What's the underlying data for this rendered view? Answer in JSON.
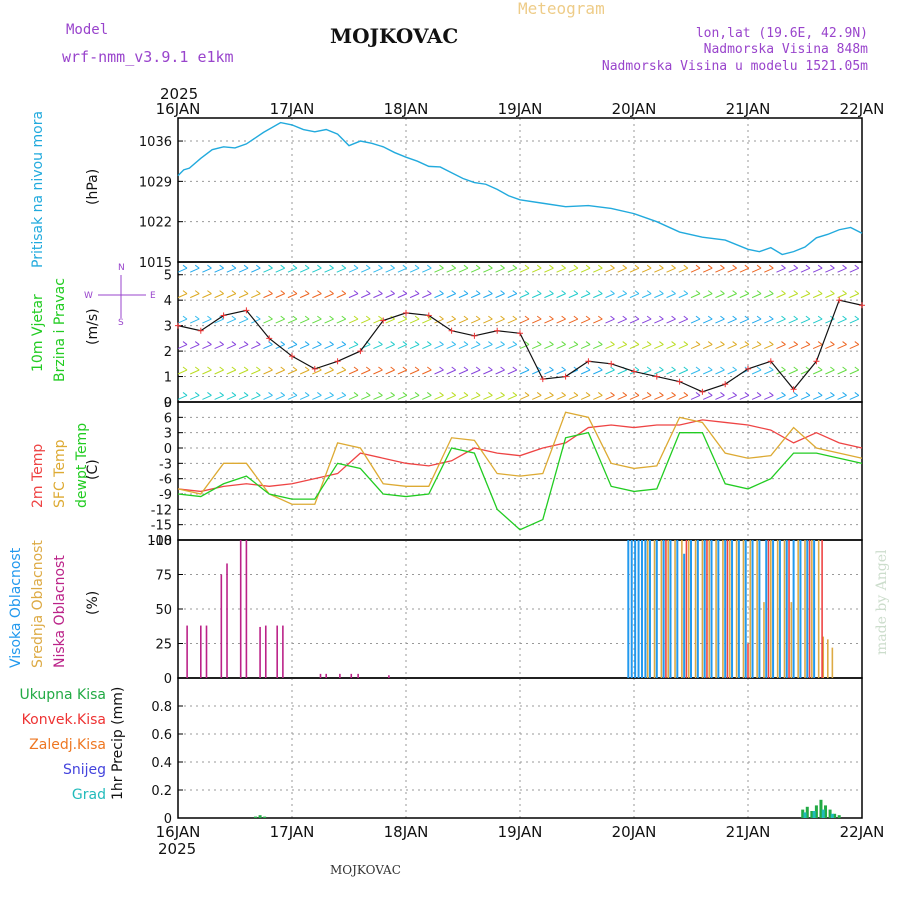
{
  "header": {
    "model_label": "Model",
    "model_name": "wrf-nmm_v3.9.1 e1km",
    "station": "MOJKOVAC",
    "product": "Meteogram",
    "lonlat": "lon,lat (19.6E, 42.9N)",
    "elevation": "Nadmorska Visina 848m",
    "model_elevation": "Nadmorska Visina u modelu 1521.05m",
    "footer_station": "MOJKOVAC",
    "credit": "made by Angel"
  },
  "colors": {
    "pressure": "#22aadd",
    "temp2m": "#ee4444",
    "sfc": "#ddaa33",
    "dewpt": "#22cc22",
    "high_cloud": "#2299ee",
    "mid_cloud": "#ddaa44",
    "low_cloud": "#bb2288",
    "precip_total": "#22aa44",
    "precip_conv": "#ee3333",
    "precip_frz": "#ee7722",
    "snow": "#4444dd",
    "grad": "#22bbbb",
    "header_purple": "#9944cc",
    "header_orange": "#eecc88"
  },
  "chart_data": [
    {
      "type": "line",
      "panel": "pressure",
      "year": "2025",
      "x_tick_labels": [
        "16JAN",
        "17JAN",
        "18JAN",
        "19JAN",
        "20JAN",
        "21JAN",
        "22JAN"
      ],
      "ylabel_main": "Pritisak na nivou mora",
      "ylabel_unit": "(hPa)",
      "ylim": [
        1015,
        1040
      ],
      "yticks": [
        1015,
        1022,
        1029,
        1036
      ],
      "grid": true,
      "series": [
        {
          "x": [
            0,
            0.05,
            0.1,
            0.2,
            0.3,
            0.4,
            0.5,
            0.6,
            0.75,
            0.9,
            1.0,
            1.1,
            1.2,
            1.3,
            1.4,
            1.5,
            1.6,
            1.7,
            1.8,
            1.9,
            2.0,
            2.1,
            2.2,
            2.3,
            2.4,
            2.5,
            2.6,
            2.7,
            2.8,
            2.9,
            3.0,
            3.2,
            3.4,
            3.6,
            3.8,
            4.0,
            4.2,
            4.4,
            4.6,
            4.8,
            5.0,
            5.1,
            5.2,
            5.3,
            5.4,
            5.5,
            5.6,
            5.7,
            5.8,
            5.9,
            6.0
          ],
          "y": [
            1030,
            1031,
            1031.3,
            1033,
            1034.5,
            1035,
            1034.8,
            1035.5,
            1037.5,
            1039.2,
            1038.8,
            1038,
            1037.6,
            1038,
            1037.2,
            1035.2,
            1036,
            1035.6,
            1035,
            1034,
            1033.2,
            1032.5,
            1031.6,
            1031.5,
            1030.5,
            1029.5,
            1028.8,
            1028.5,
            1027.6,
            1026.5,
            1025.8,
            1025.2,
            1024.6,
            1024.8,
            1024.3,
            1023.4,
            1022,
            1020.2,
            1019.3,
            1018.8,
            1017.2,
            1016.8,
            1017.5,
            1016.3,
            1016.8,
            1017.6,
            1019.2,
            1019.8,
            1020.6,
            1021,
            1020
          ]
        }
      ]
    },
    {
      "type": "line",
      "panel": "wind",
      "ylabel_main": "10m Vjetar",
      "ylabel_sub": "Brzina i Pravac",
      "ylabel_unit": "(m/s)",
      "compass": {
        "n": "N",
        "s": "S",
        "w": "W",
        "e": "E"
      },
      "ylim": [
        0,
        5.5
      ],
      "yticks": [
        0,
        1,
        2,
        3,
        4,
        5
      ],
      "series": [
        {
          "name": "speed",
          "x": [
            0,
            0.2,
            0.4,
            0.6,
            0.8,
            1.0,
            1.2,
            1.4,
            1.6,
            1.8,
            2.0,
            2.2,
            2.4,
            2.6,
            2.8,
            3.0,
            3.2,
            3.4,
            3.6,
            3.8,
            4.0,
            4.2,
            4.4,
            4.6,
            4.8,
            5.0,
            5.2,
            5.4,
            5.6,
            5.8,
            6.0
          ],
          "y": [
            3.0,
            2.8,
            3.4,
            3.6,
            2.5,
            1.8,
            1.3,
            1.6,
            2.0,
            3.2,
            3.5,
            3.4,
            2.8,
            2.6,
            2.8,
            2.7,
            0.9,
            1.0,
            1.6,
            1.5,
            1.2,
            1.0,
            0.8,
            0.4,
            0.7,
            1.3,
            1.6,
            0.5,
            1.6,
            4.0,
            3.8
          ]
        }
      ]
    },
    {
      "type": "line",
      "panel": "temperature",
      "ylabel_lines": [
        "2m Temp",
        "SFC Temp",
        "dewpt Temp"
      ],
      "ylabel_unit": "(C)",
      "ylim": [
        -18,
        9
      ],
      "yticks": [
        -18,
        -15,
        -12,
        -9,
        -6,
        -3,
        0,
        3,
        6,
        9
      ],
      "series": [
        {
          "name": "2m Temp",
          "x": [
            0,
            0.2,
            0.4,
            0.6,
            0.8,
            1.0,
            1.2,
            1.4,
            1.6,
            1.8,
            2.0,
            2.2,
            2.4,
            2.6,
            2.8,
            3.0,
            3.2,
            3.4,
            3.6,
            3.8,
            4.0,
            4.2,
            4.4,
            4.6,
            4.8,
            5.0,
            5.2,
            5.4,
            5.6,
            5.8,
            6.0
          ],
          "y": [
            -8,
            -8.5,
            -7.5,
            -7,
            -7.5,
            -7,
            -6,
            -5,
            -1,
            -2,
            -3,
            -3.5,
            -2.5,
            0,
            -1,
            -1.5,
            0,
            1,
            4,
            4.5,
            4,
            4.5,
            4.5,
            5.5,
            5,
            4.5,
            3.5,
            1,
            3,
            1,
            0
          ]
        },
        {
          "name": "SFC Temp",
          "x": [
            0,
            0.2,
            0.4,
            0.6,
            0.8,
            1.0,
            1.2,
            1.4,
            1.6,
            1.8,
            2.0,
            2.2,
            2.4,
            2.6,
            2.8,
            3.0,
            3.2,
            3.4,
            3.6,
            3.8,
            4.0,
            4.2,
            4.4,
            4.6,
            4.8,
            5.0,
            5.2,
            5.4,
            5.6,
            5.8,
            6.0
          ],
          "y": [
            -8,
            -9,
            -3,
            -3,
            -9,
            -11,
            -11,
            1,
            0,
            -7,
            -7.5,
            -7.5,
            2,
            1.5,
            -5,
            -5.5,
            -5,
            7,
            6,
            -3,
            -4,
            -3.5,
            6,
            5,
            -1,
            -2,
            -1.5,
            4,
            0,
            -1,
            -2
          ]
        },
        {
          "name": "dewpt Temp",
          "x": [
            0,
            0.2,
            0.4,
            0.6,
            0.8,
            1.0,
            1.2,
            1.4,
            1.6,
            1.8,
            2.0,
            2.2,
            2.4,
            2.6,
            2.8,
            3.0,
            3.2,
            3.4,
            3.6,
            3.8,
            4.0,
            4.2,
            4.4,
            4.6,
            4.8,
            5.0,
            5.2,
            5.4,
            5.6,
            5.8,
            6.0
          ],
          "y": [
            -9,
            -9.5,
            -7,
            -5.5,
            -9,
            -10,
            -10,
            -3,
            -4,
            -9,
            -9.5,
            -9,
            0,
            -1,
            -12,
            -16,
            -14,
            2,
            3,
            -7.5,
            -8.5,
            -8,
            3,
            3,
            -7,
            -8,
            -6,
            -1,
            -1,
            -2,
            -3
          ]
        }
      ]
    },
    {
      "type": "bar",
      "panel": "clouds",
      "ylabel_lines": [
        "Visoka Oblacnost",
        "Srednja Oblacnost",
        "Niska Oblacnost"
      ],
      "ylabel_unit": "(%)",
      "ylim": [
        0,
        100
      ],
      "yticks": [
        0,
        25,
        50,
        75,
        100
      ],
      "series": [
        {
          "name": "Niska",
          "x": [
            0.08,
            0.2,
            0.25,
            0.38,
            0.43,
            0.55,
            0.6,
            0.72,
            0.77,
            0.87,
            0.92,
            1.25,
            1.3,
            1.42,
            1.52,
            1.58,
            1.85
          ],
          "values": [
            38,
            38,
            38,
            75,
            83,
            100,
            100,
            37,
            38,
            38,
            38,
            3,
            3,
            3,
            3,
            3,
            2
          ]
        },
        {
          "name": "Visoka",
          "x": [
            3.95,
            3.98,
            4.01,
            4.04,
            4.07,
            4.1,
            4.14,
            4.2,
            4.26,
            4.32,
            4.38,
            4.44,
            4.5,
            4.56,
            4.62,
            4.68,
            4.74,
            4.8,
            4.86,
            4.92,
            4.98,
            5.04,
            5.1,
            5.16,
            5.22,
            5.28,
            5.34,
            5.4,
            5.46,
            5.52,
            5.58
          ],
          "values": [
            100,
            100,
            100,
            100,
            100,
            100,
            100,
            100,
            100,
            100,
            100,
            90,
            100,
            100,
            100,
            100,
            100,
            100,
            100,
            100,
            100,
            100,
            100,
            100,
            100,
            100,
            100,
            100,
            100,
            100,
            100
          ]
        },
        {
          "name": "Srednja",
          "x": [
            4.12,
            4.18,
            4.24,
            4.3,
            4.36,
            4.42,
            4.48,
            4.54,
            4.6,
            4.66,
            4.72,
            4.78,
            4.84,
            4.9,
            4.96,
            5.02,
            5.08,
            5.14,
            5.2,
            5.26,
            5.32,
            5.38,
            5.44,
            5.5,
            5.56,
            5.62,
            5.66,
            5.7,
            5.74
          ],
          "values": [
            100,
            100,
            100,
            100,
            100,
            100,
            100,
            100,
            100,
            100,
            100,
            100,
            100,
            100,
            100,
            100,
            100,
            55,
            100,
            100,
            100,
            55,
            100,
            100,
            100,
            100,
            30,
            28,
            22
          ]
        },
        {
          "name": "Niska2",
          "x": [
            4.28,
            4.46,
            4.64,
            4.82,
            5.0,
            5.18,
            5.36,
            5.54,
            5.65
          ],
          "values": [
            100,
            100,
            100,
            100,
            25,
            100,
            100,
            100,
            100
          ]
        }
      ]
    },
    {
      "type": "bar",
      "panel": "precip",
      "legend": [
        "Ukupna Kisa",
        "Konvek.Kisa",
        "Zaledj.Kisa",
        "Snijeg",
        "Grad"
      ],
      "ylabel_main": "1hr Precip (mm)",
      "ylim": [
        0,
        1.0
      ],
      "yticks": [
        0,
        0.2,
        0.4,
        0.6,
        0.8
      ],
      "ytick_labels": [
        "0",
        "0.2",
        "0.4",
        "0.6",
        "0.8"
      ],
      "series": [
        {
          "name": "Ukupna Kisa",
          "x": [
            0.68,
            0.72,
            0.76,
            5.48,
            5.52,
            5.56,
            5.6,
            5.64,
            5.68,
            5.72,
            5.76,
            5.8
          ],
          "values": [
            0.01,
            0.02,
            0.01,
            0.06,
            0.08,
            0.05,
            0.09,
            0.13,
            0.09,
            0.06,
            0.03,
            0.02
          ]
        },
        {
          "name": "Grad",
          "x": [
            5.5,
            5.58,
            5.66,
            5.74
          ],
          "values": [
            0.04,
            0.05,
            0.06,
            0.03
          ]
        }
      ]
    }
  ]
}
